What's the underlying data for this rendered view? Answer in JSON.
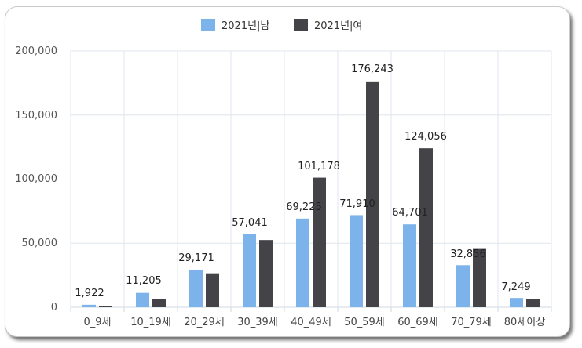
{
  "chart_data": {
    "type": "bar",
    "categories": [
      "0_9세",
      "10_19세",
      "20_29세",
      "30_39세",
      "40_49세",
      "50_59세",
      "60_69세",
      "70_79세",
      "80세이상"
    ],
    "series": [
      {
        "name": "2021년|남",
        "color": "#7cb3ea",
        "values": [
          1922,
          11205,
          29171,
          57041,
          69225,
          71910,
          64701,
          32856,
          7249
        ]
      },
      {
        "name": "2021년|여",
        "color": "#434348",
        "values": [
          1100,
          6500,
          26500,
          52500,
          101178,
          176243,
          124056,
          45500,
          6500
        ]
      }
    ],
    "data_labels": [
      "1,922",
      "11,205",
      "29,171",
      "57,041",
      "69,225",
      "71,910",
      "64,701",
      "32,856",
      "7,249",
      "101,178",
      "176,243",
      "124,056"
    ],
    "yticks": [
      "0",
      "50,000",
      "100,000",
      "150,000",
      "200,000"
    ],
    "ylim": [
      0,
      200000
    ],
    "grid": true,
    "legend_position": "top"
  }
}
